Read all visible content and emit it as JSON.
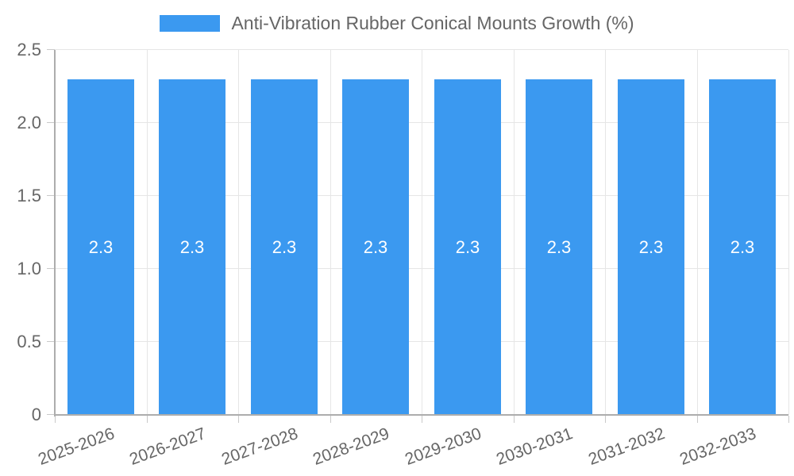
{
  "chart_data": {
    "type": "bar",
    "title": "Anti-Vibration Rubber Conical Mounts Growth (%)",
    "categories": [
      "2025-2026",
      "2026-2027",
      "2027-2028",
      "2028-2029",
      "2029-2030",
      "2030-2031",
      "2031-2032",
      "2032-2033"
    ],
    "values": [
      2.3,
      2.3,
      2.3,
      2.3,
      2.3,
      2.3,
      2.3,
      2.3
    ],
    "bar_labels": [
      "2.3",
      "2.3",
      "2.3",
      "2.3",
      "2.3",
      "2.3",
      "2.3",
      "2.3"
    ],
    "xlabel": "",
    "ylabel": "",
    "ylim": [
      0,
      2.5
    ],
    "yticks": [
      {
        "value": 0,
        "label": "0"
      },
      {
        "value": 0.5,
        "label": "0.5"
      },
      {
        "value": 1.0,
        "label": "1.0"
      },
      {
        "value": 1.5,
        "label": "1.5"
      },
      {
        "value": 2.0,
        "label": "2.0"
      },
      {
        "value": 2.5,
        "label": "2.5"
      }
    ],
    "grid": true,
    "legend_position": "top-center",
    "xtick_rotation_deg": -20,
    "colors": {
      "bar": "#3B99F0",
      "bar_label": "#FFFFFF",
      "axis_text": "#666666",
      "grid": "#E6E6E6",
      "axis_line": "#ADADAD",
      "tick_mark": "#C9C9C9",
      "background": "#FFFFFF"
    }
  }
}
